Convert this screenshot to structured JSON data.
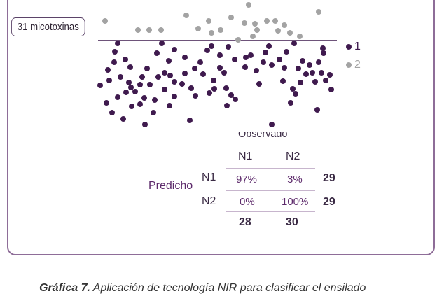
{
  "label_box": "31 micotoxinas",
  "legend": [
    {
      "label": "1",
      "color": "#3f1a4e"
    },
    {
      "label": "2",
      "color": "#a3a3a3"
    }
  ],
  "observed_label": "Observado",
  "predicted_label": "Predicho",
  "confusion": {
    "col_headers": [
      "N1",
      "N2"
    ],
    "row_headers": [
      "N1",
      "N2"
    ],
    "cells": [
      [
        "97%",
        "3%"
      ],
      [
        "0%",
        "100%"
      ]
    ],
    "row_totals": [
      "29",
      "29"
    ],
    "col_totals": [
      "28",
      "30"
    ]
  },
  "caption": {
    "prefix": "Gráfica 7.",
    "text": " Aplicación de tecnología NIR para clasificar el ensilado"
  },
  "chart_data": {
    "type": "scatter",
    "title": "",
    "xlabel": "",
    "ylabel": "",
    "note": "Class separation plot: points above the threshold line are class 2, below are class 1",
    "series": [
      {
        "name": "1",
        "color": "#3f1a4e",
        "points": [
          [
            168,
            62
          ],
          [
            231,
            62
          ],
          [
            420,
            62
          ],
          [
            302,
            66
          ],
          [
            384,
            66
          ],
          [
            326,
            67
          ],
          [
            461,
            69
          ],
          [
            249,
            71
          ],
          [
            296,
            72
          ],
          [
            164,
            74
          ],
          [
            409,
            74
          ],
          [
            379,
            75
          ],
          [
            462,
            76
          ],
          [
            224,
            76
          ],
          [
            358,
            79
          ],
          [
            314,
            79
          ],
          [
            351,
            82
          ],
          [
            264,
            82
          ],
          [
            335,
            85
          ],
          [
            179,
            85
          ],
          [
            399,
            85
          ],
          [
            241,
            87
          ],
          [
            432,
            87
          ],
          [
            163,
            89
          ],
          [
            286,
            89
          ],
          [
            376,
            89
          ],
          [
            455,
            89
          ],
          [
            388,
            93
          ],
          [
            442,
            93
          ],
          [
            186,
            96
          ],
          [
            350,
            96
          ],
          [
            314,
            97
          ],
          [
            406,
            97
          ],
          [
            426,
            98
          ],
          [
            210,
            98
          ],
          [
            278,
            98
          ],
          [
            154,
            100
          ],
          [
            366,
            101
          ],
          [
            235,
            104
          ],
          [
            320,
            104
          ],
          [
            446,
            104
          ],
          [
            459,
            104
          ],
          [
            264,
            105
          ],
          [
            290,
            106
          ],
          [
            437,
            106
          ],
          [
            471,
            107
          ],
          [
            243,
            108
          ],
          [
            172,
            110
          ],
          [
            203,
            110
          ],
          [
            226,
            110
          ],
          [
            156,
            115
          ],
          [
            305,
            115
          ],
          [
            249,
            117
          ],
          [
            465,
            115
          ],
          [
            404,
            116
          ],
          [
            450,
            117
          ],
          [
            184,
            118
          ],
          [
            429,
            118
          ],
          [
            370,
            120
          ],
          [
            260,
            120
          ],
          [
            200,
            121
          ],
          [
            214,
            121
          ],
          [
            143,
            122
          ],
          [
            187,
            125
          ],
          [
            273,
            126
          ],
          [
            323,
            126
          ],
          [
            306,
            127
          ],
          [
            418,
            127
          ],
          [
            235,
            128
          ],
          [
            473,
            128
          ],
          [
            193,
            131
          ],
          [
            180,
            132
          ],
          [
            299,
            133
          ],
          [
            422,
            134
          ],
          [
            330,
            136
          ],
          [
            279,
            137
          ],
          [
            249,
            138
          ],
          [
            168,
            139
          ],
          [
            206,
            140
          ],
          [
            336,
            142
          ],
          [
            221,
            143
          ],
          [
            152,
            147
          ],
          [
            415,
            147
          ],
          [
            200,
            149
          ],
          [
            242,
            151
          ],
          [
            324,
            151
          ],
          [
            188,
            152
          ],
          [
            453,
            157
          ],
          [
            160,
            161
          ],
          [
            219,
            161
          ],
          [
            176,
            170
          ],
          [
            271,
            172
          ],
          [
            207,
            178
          ],
          [
            388,
            178
          ]
        ]
      },
      {
        "name": "2",
        "color": "#a3a3a3",
        "points": [
          [
            355,
            7
          ],
          [
            455,
            17
          ],
          [
            266,
            22
          ],
          [
            330,
            25
          ],
          [
            298,
            30
          ],
          [
            150,
            30
          ],
          [
            349,
            33
          ],
          [
            364,
            34
          ],
          [
            381,
            30
          ],
          [
            393,
            30
          ],
          [
            406,
            36
          ],
          [
            283,
            41
          ],
          [
            197,
            43
          ],
          [
            213,
            43
          ],
          [
            230,
            43
          ],
          [
            315,
            43
          ],
          [
            367,
            43
          ],
          [
            397,
            44
          ],
          [
            302,
            47
          ],
          [
            414,
            47
          ],
          [
            361,
            52
          ],
          [
            428,
            52
          ],
          [
            340,
            57
          ]
        ]
      }
    ],
    "threshold_line": {
      "from": [
        140,
        58
      ],
      "to": [
        481,
        58
      ]
    }
  }
}
